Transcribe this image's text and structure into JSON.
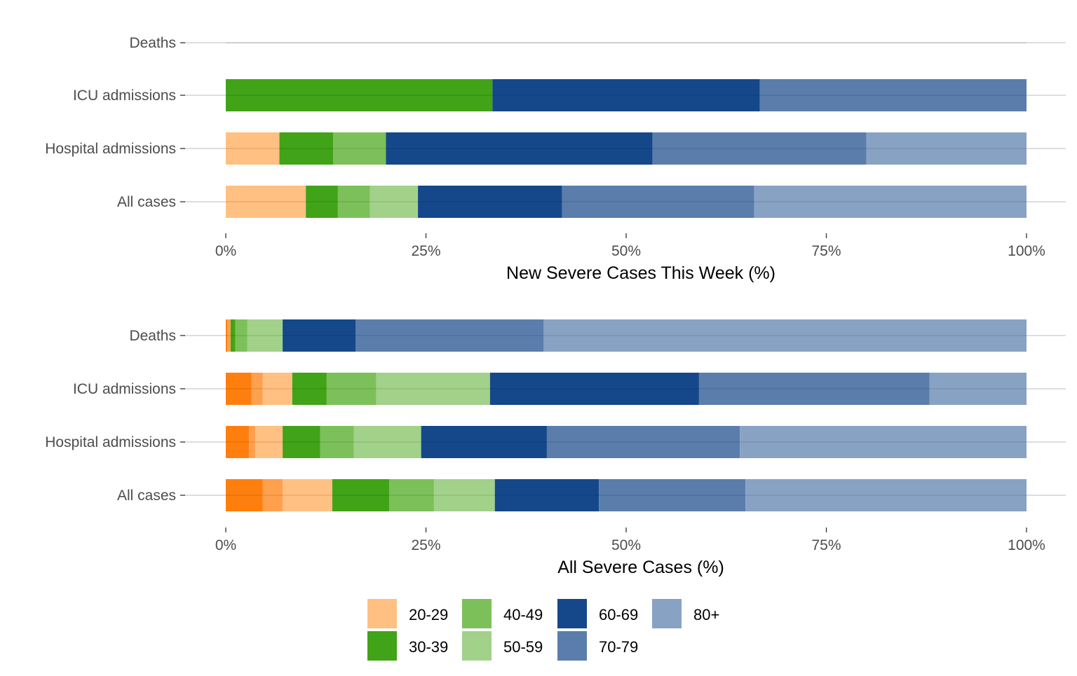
{
  "chart_data": [
    {
      "type": "bar",
      "orientation": "horizontal",
      "stacked": true,
      "xlabel": "New Severe Cases This Week (%)",
      "xlim": [
        0,
        100
      ],
      "xticks": [
        "0%",
        "25%",
        "50%",
        "75%",
        "100%"
      ],
      "grid": "horizontal",
      "categories": [
        "Deaths",
        "ICU admissions",
        "Hospital admissions",
        "All cases"
      ],
      "series": [
        {
          "name": "20-29",
          "color": "#FFC081",
          "values": [
            0,
            0,
            6.7,
            10
          ]
        },
        {
          "name": "30-39",
          "color": "#41A317",
          "values": [
            0,
            33.3,
            6.7,
            4
          ]
        },
        {
          "name": "40-49",
          "color": "#7CC05A",
          "values": [
            0,
            0,
            6.6,
            4
          ]
        },
        {
          "name": "50-59",
          "color": "#A2D18A",
          "values": [
            0,
            0,
            0,
            6
          ]
        },
        {
          "name": "60-69",
          "color": "#15488A",
          "values": [
            0,
            33.4,
            33.3,
            18
          ]
        },
        {
          "name": "70-79",
          "color": "#5A7DAC",
          "values": [
            0,
            33.3,
            26.7,
            24
          ]
        },
        {
          "name": "80+",
          "color": "#88A2C3",
          "values": [
            0,
            0,
            20,
            34
          ]
        }
      ]
    },
    {
      "type": "bar",
      "orientation": "horizontal",
      "stacked": true,
      "xlabel": "All Severe Cases (%)",
      "xlim": [
        0,
        100
      ],
      "xticks": [
        "0%",
        "25%",
        "50%",
        "75%",
        "100%"
      ],
      "grid": "horizontal",
      "categories": [
        "Deaths",
        "ICU admissions",
        "Hospital admissions",
        "All cases"
      ],
      "series": [
        {
          "name": "",
          "color": "#FF7F0E",
          "values": [
            0.2,
            3.2,
            2.9,
            4.6
          ]
        },
        {
          "name": "",
          "color": "#FFA04E",
          "values": [
            0.4,
            1.4,
            0.8,
            2.5
          ]
        },
        {
          "name": "20-29",
          "color": "#FFC081",
          "values": [
            0,
            3.7,
            3.4,
            6.2
          ]
        },
        {
          "name": "30-39",
          "color": "#41A317",
          "values": [
            0.6,
            4.3,
            4.7,
            7.1
          ]
        },
        {
          "name": "40-49",
          "color": "#7CC05A",
          "values": [
            1.5,
            6.2,
            4.2,
            5.6
          ]
        },
        {
          "name": "50-59",
          "color": "#A2D18A",
          "values": [
            4.4,
            14.2,
            8.4,
            7.6
          ]
        },
        {
          "name": "60-69",
          "color": "#15488A",
          "values": [
            9.1,
            26.1,
            15.7,
            13.0
          ]
        },
        {
          "name": "70-79",
          "color": "#5A7DAC",
          "values": [
            23.5,
            28.8,
            24.1,
            18.3
          ]
        },
        {
          "name": "80+",
          "color": "#88A2C3",
          "values": [
            60.3,
            12.1,
            35.8,
            35.1
          ]
        }
      ]
    }
  ],
  "legend": {
    "position": "bottom",
    "items": [
      {
        "label": "20-29",
        "color": "#FFC081"
      },
      {
        "label": "30-39",
        "color": "#41A317"
      },
      {
        "label": "40-49",
        "color": "#7CC05A"
      },
      {
        "label": "50-59",
        "color": "#A2D18A"
      },
      {
        "label": "60-69",
        "color": "#15488A"
      },
      {
        "label": "70-79",
        "color": "#5A7DAC"
      },
      {
        "label": "80+",
        "color": "#88A2C3"
      }
    ]
  }
}
